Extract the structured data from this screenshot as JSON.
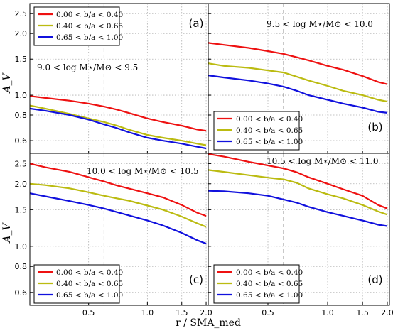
{
  "figure": {
    "ylabel": "A_V",
    "xlabel": "r / SMA_med",
    "xticks": [
      0.5,
      1.0,
      1.5,
      2.0
    ],
    "xtick_labels": [
      "0.5",
      "1.0",
      "1.5",
      "2.0"
    ],
    "legend_labels": [
      "0.00 < b/a < 0.40",
      "0.40 < b/a < 0.65",
      "0.65 < b/a < 1.00"
    ],
    "colors": [
      "#ee1111",
      "#bbbb11",
      "#1111dd"
    ]
  },
  "chart_data": [
    {
      "type": "line",
      "panel": "(a)",
      "mass_label": "9.0 < log M⋆/M⊙ < 9.5",
      "x_scale": "log",
      "y_scale": "log",
      "xlim": [
        0.25,
        2.05
      ],
      "ylim": [
        0.52,
        2.8
      ],
      "yticks": [
        0.6,
        0.8,
        1.0,
        1.5,
        2.0,
        2.5
      ],
      "ytick_labels": [
        "0.6",
        "0.8",
        "1.0",
        "1.5",
        "2.0",
        "2.5"
      ],
      "vline_x": 0.6,
      "legend_position": "top-left",
      "x": [
        0.25,
        0.3,
        0.4,
        0.5,
        0.6,
        0.7,
        0.8,
        1.0,
        1.2,
        1.5,
        1.8,
        2.0
      ],
      "series": [
        {
          "name": "0.00 < b/a < 0.40",
          "values": [
            0.99,
            0.97,
            0.94,
            0.91,
            0.88,
            0.85,
            0.82,
            0.77,
            0.74,
            0.71,
            0.68,
            0.67
          ]
        },
        {
          "name": "0.40 < b/a < 0.65",
          "values": [
            0.89,
            0.86,
            0.81,
            0.77,
            0.74,
            0.71,
            0.68,
            0.64,
            0.62,
            0.6,
            0.58,
            0.57
          ]
        },
        {
          "name": "0.65 < b/a < 1.00",
          "values": [
            0.86,
            0.84,
            0.8,
            0.76,
            0.72,
            0.69,
            0.66,
            0.62,
            0.6,
            0.58,
            0.56,
            0.55
          ]
        }
      ]
    },
    {
      "type": "line",
      "panel": "(b)",
      "mass_label": "9.5 < log M⋆/M⊙ < 10.0",
      "x_scale": "log",
      "y_scale": "log",
      "xlim": [
        0.25,
        2.05
      ],
      "ylim": [
        0.52,
        2.8
      ],
      "yticks": [
        0.6,
        0.8,
        1.0,
        1.5,
        2.0,
        2.5
      ],
      "vline_x": 0.6,
      "legend_position": "bottom-left",
      "x": [
        0.25,
        0.3,
        0.4,
        0.5,
        0.6,
        0.7,
        0.8,
        1.0,
        1.2,
        1.5,
        1.8,
        2.0
      ],
      "series": [
        {
          "name": "0.00 < b/a < 0.40",
          "values": [
            1.8,
            1.76,
            1.7,
            1.64,
            1.59,
            1.53,
            1.48,
            1.39,
            1.33,
            1.24,
            1.16,
            1.13
          ]
        },
        {
          "name": "0.40 < b/a < 0.65",
          "values": [
            1.43,
            1.39,
            1.36,
            1.32,
            1.29,
            1.23,
            1.18,
            1.11,
            1.05,
            1.0,
            0.95,
            0.93
          ]
        },
        {
          "name": "0.65 < b/a < 1.00",
          "values": [
            1.25,
            1.22,
            1.18,
            1.14,
            1.1,
            1.05,
            1.0,
            0.95,
            0.91,
            0.87,
            0.83,
            0.82
          ]
        }
      ]
    },
    {
      "type": "line",
      "panel": "(c)",
      "mass_label": "10.0 < log M⋆/M⊙ < 10.5",
      "x_scale": "log",
      "y_scale": "log",
      "xlim": [
        0.25,
        2.05
      ],
      "ylim": [
        0.52,
        2.8
      ],
      "yticks": [
        0.6,
        0.8,
        1.0,
        1.5,
        2.0,
        2.5
      ],
      "ytick_labels": [
        "0.6",
        "0.8",
        "1.0",
        "1.5",
        "2.0",
        "2.5"
      ],
      "vline_x": 0.6,
      "legend_position": "bottom-left",
      "x": [
        0.25,
        0.3,
        0.4,
        0.5,
        0.6,
        0.7,
        0.8,
        1.0,
        1.2,
        1.5,
        1.8,
        2.0
      ],
      "series": [
        {
          "name": "0.00 < b/a < 0.40",
          "values": [
            2.5,
            2.4,
            2.28,
            2.15,
            2.05,
            1.96,
            1.9,
            1.8,
            1.72,
            1.58,
            1.45,
            1.4
          ]
        },
        {
          "name": "0.40 < b/a < 0.65",
          "values": [
            2.0,
            1.97,
            1.9,
            1.82,
            1.75,
            1.7,
            1.66,
            1.57,
            1.5,
            1.39,
            1.29,
            1.24
          ]
        },
        {
          "name": "0.65 < b/a < 1.00",
          "values": [
            1.8,
            1.74,
            1.65,
            1.58,
            1.52,
            1.46,
            1.41,
            1.33,
            1.26,
            1.16,
            1.07,
            1.03
          ]
        }
      ]
    },
    {
      "type": "line",
      "panel": "(d)",
      "mass_label": "10.5 < log M⋆/M⊙ < 11.0",
      "x_scale": "log",
      "y_scale": "log",
      "xlim": [
        0.25,
        2.05
      ],
      "ylim": [
        0.52,
        2.8
      ],
      "yticks": [
        0.6,
        0.8,
        1.0,
        1.5,
        2.0,
        2.5
      ],
      "vline_x": 0.6,
      "legend_position": "bottom-left",
      "x": [
        0.25,
        0.3,
        0.4,
        0.5,
        0.6,
        0.7,
        0.8,
        1.0,
        1.2,
        1.5,
        1.8,
        2.0
      ],
      "series": [
        {
          "name": "0.00 < b/a < 0.40",
          "values": [
            2.78,
            2.7,
            2.55,
            2.45,
            2.37,
            2.27,
            2.15,
            2.0,
            1.88,
            1.75,
            1.58,
            1.52
          ]
        },
        {
          "name": "0.40 < b/a < 0.65",
          "values": [
            2.33,
            2.28,
            2.2,
            2.14,
            2.1,
            2.02,
            1.9,
            1.78,
            1.7,
            1.58,
            1.47,
            1.42
          ]
        },
        {
          "name": "0.65 < b/a < 1.00",
          "values": [
            1.85,
            1.84,
            1.8,
            1.75,
            1.68,
            1.62,
            1.55,
            1.46,
            1.4,
            1.33,
            1.27,
            1.25
          ]
        }
      ]
    }
  ]
}
